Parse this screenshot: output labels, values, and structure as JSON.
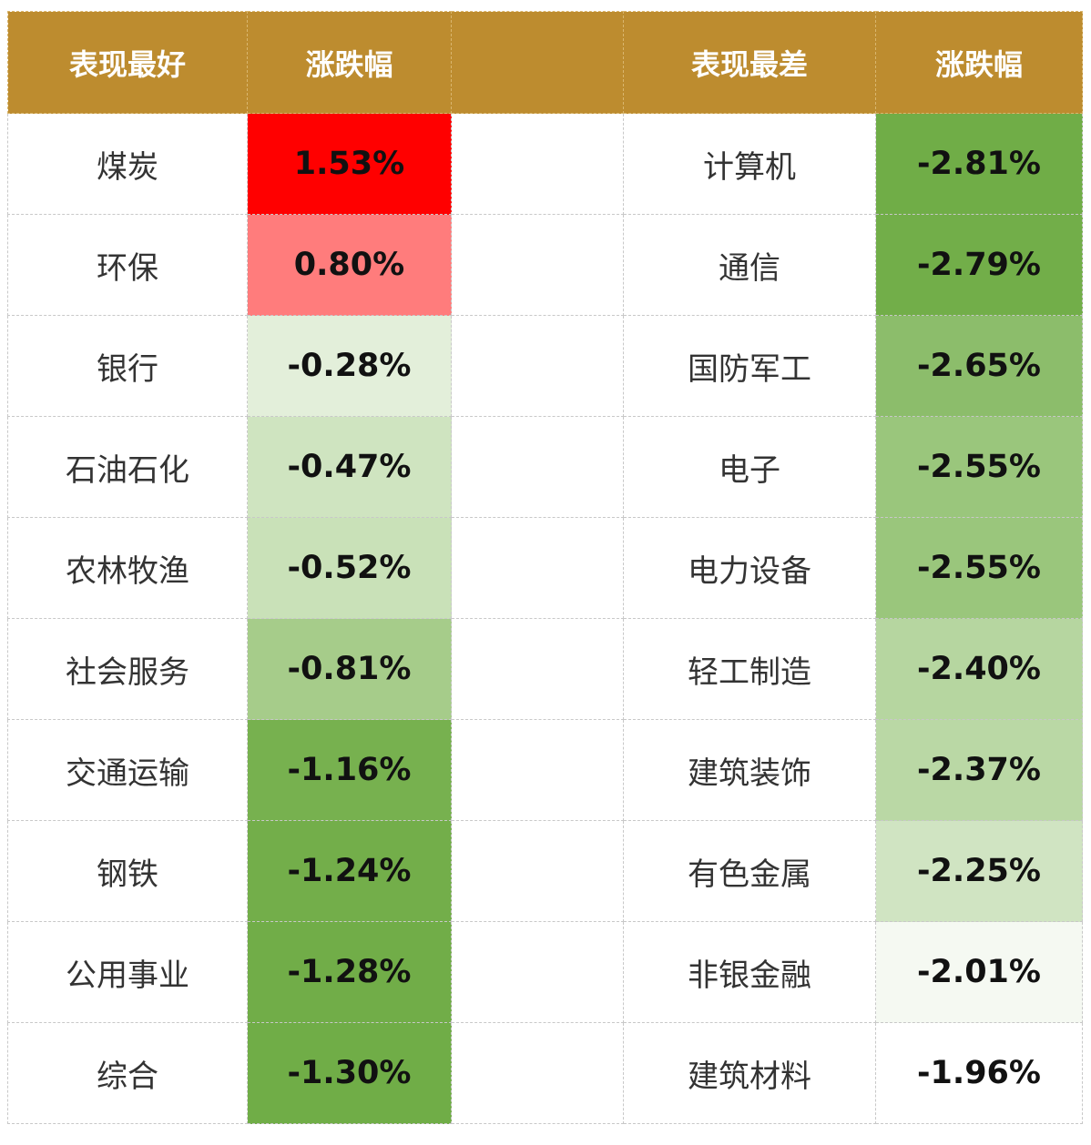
{
  "header": {
    "best_label": "表现最好",
    "change_label_left": "涨跌幅",
    "gap_label": "",
    "worst_label": "表现最差",
    "change_label_right": "涨跌幅"
  },
  "colors": {
    "header_bg": "#bd8c2f",
    "header_text": "#ffffff"
  },
  "rows": [
    {
      "best_name": "煤炭",
      "best_change": "1.53%",
      "best_color": "#ff0000",
      "worst_name": "计算机",
      "worst_change": "-2.81%",
      "worst_color": "#70ad47"
    },
    {
      "best_name": "环保",
      "best_change": "0.80%",
      "best_color": "#ff7c7c",
      "worst_name": "通信",
      "worst_change": "-2.79%",
      "worst_color": "#72ae49"
    },
    {
      "best_name": "银行",
      "best_change": "-0.28%",
      "best_color": "#e3efda",
      "worst_name": "国防军工",
      "worst_change": "-2.65%",
      "worst_color": "#8cbd6b"
    },
    {
      "best_name": "石油石化",
      "best_change": "-0.47%",
      "best_color": "#cfe4c0",
      "worst_name": "电子",
      "worst_change": "-2.55%",
      "worst_color": "#9ac67c"
    },
    {
      "best_name": "农林牧渔",
      "best_change": "-0.52%",
      "best_color": "#c9e1b8",
      "worst_name": "电力设备",
      "worst_change": "-2.55%",
      "worst_color": "#9ac67c"
    },
    {
      "best_name": "社会服务",
      "best_change": "-0.81%",
      "best_color": "#a6cc8a",
      "worst_name": "轻工制造",
      "worst_change": "-2.40%",
      "worst_color": "#b6d6a0"
    },
    {
      "best_name": "交通运输",
      "best_change": "-1.16%",
      "best_color": "#77b14f",
      "worst_name": "建筑装饰",
      "worst_change": "-2.37%",
      "worst_color": "#bad8a5"
    },
    {
      "best_name": "钢铁",
      "best_change": "-1.24%",
      "best_color": "#73ae4a",
      "worst_name": "有色金属",
      "worst_change": "-2.25%",
      "worst_color": "#d0e4c2"
    },
    {
      "best_name": "公用事业",
      "best_change": "-1.28%",
      "best_color": "#71ad48",
      "worst_name": "非银金融",
      "worst_change": "-2.01%",
      "worst_color": "#f5f9f2"
    },
    {
      "best_name": "综合",
      "best_change": "-1.30%",
      "best_color": "#70ad47",
      "worst_name": "建筑材料",
      "worst_change": "-1.96%",
      "worst_color": "#ffffff"
    }
  ]
}
